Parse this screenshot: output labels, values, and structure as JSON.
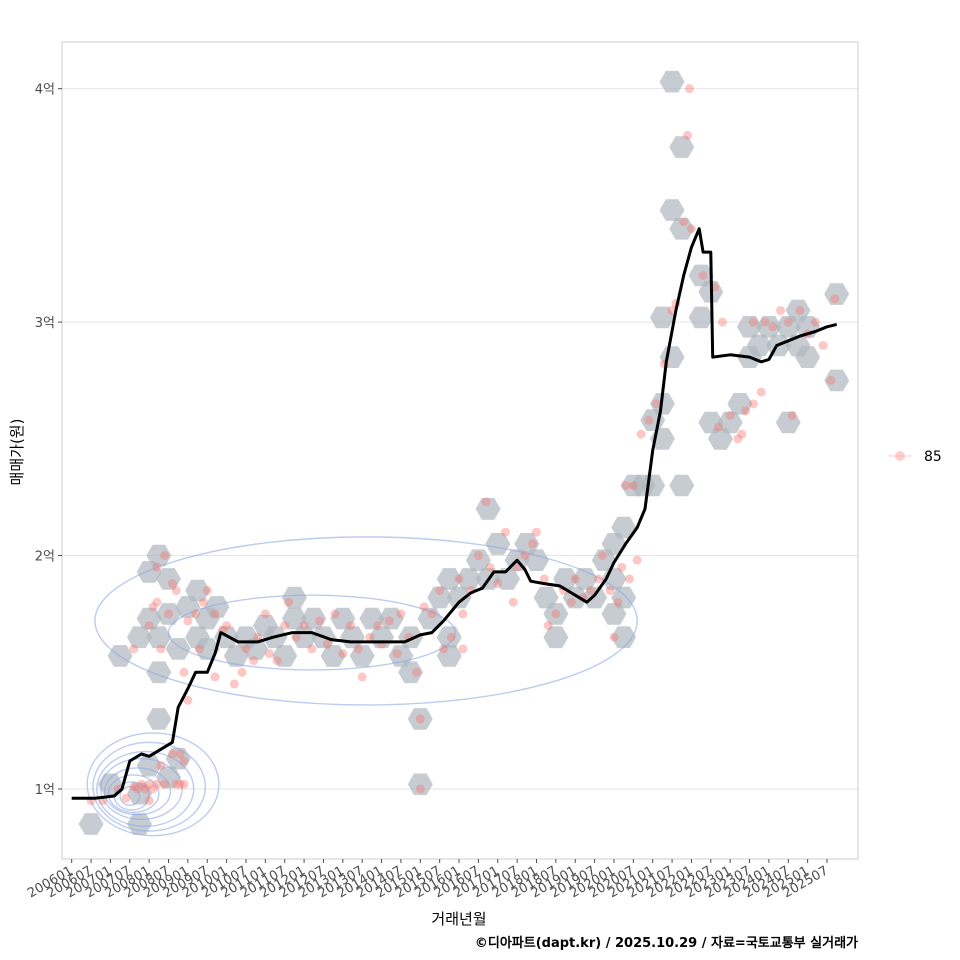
{
  "chart_data": {
    "type": "scatter",
    "xlabel": "거래년월",
    "ylabel": "매매가(원)",
    "caption": "©디아파트(dapt.kr) / 2025.10.29 / 자료=국토교통부 실거래가",
    "legend": {
      "label": "85",
      "position": "right"
    },
    "xlim": [
      2005.75,
      2026.3
    ],
    "ylim": [
      0.7,
      4.2
    ],
    "y_ticks": [
      {
        "value": 1,
        "label": "1억"
      },
      {
        "value": 2,
        "label": "2억"
      },
      {
        "value": 3,
        "label": "3억"
      },
      {
        "value": 4,
        "label": "4억"
      }
    ],
    "x_ticks": [
      {
        "value": 2006.0,
        "label": "200601"
      },
      {
        "value": 2006.5,
        "label": "200607"
      },
      {
        "value": 2007.0,
        "label": "200701"
      },
      {
        "value": 2007.5,
        "label": "200707"
      },
      {
        "value": 2008.0,
        "label": "200801"
      },
      {
        "value": 2008.5,
        "label": "200807"
      },
      {
        "value": 2009.0,
        "label": "200901"
      },
      {
        "value": 2009.5,
        "label": "200907"
      },
      {
        "value": 2010.0,
        "label": "201001"
      },
      {
        "value": 2010.5,
        "label": "201007"
      },
      {
        "value": 2011.0,
        "label": "201101"
      },
      {
        "value": 2011.5,
        "label": "201107"
      },
      {
        "value": 2012.0,
        "label": "201201"
      },
      {
        "value": 2012.5,
        "label": "201207"
      },
      {
        "value": 2013.0,
        "label": "201301"
      },
      {
        "value": 2013.5,
        "label": "201307"
      },
      {
        "value": 2014.0,
        "label": "201401"
      },
      {
        "value": 2014.5,
        "label": "201407"
      },
      {
        "value": 2015.0,
        "label": "201501"
      },
      {
        "value": 2015.5,
        "label": "201507"
      },
      {
        "value": 2016.0,
        "label": "201601"
      },
      {
        "value": 2016.5,
        "label": "201607"
      },
      {
        "value": 2017.0,
        "label": "201701"
      },
      {
        "value": 2017.5,
        "label": "201707"
      },
      {
        "value": 2018.0,
        "label": "201801"
      },
      {
        "value": 2018.5,
        "label": "201807"
      },
      {
        "value": 2019.0,
        "label": "201901"
      },
      {
        "value": 2019.5,
        "label": "201907"
      },
      {
        "value": 2020.0,
        "label": "202001"
      },
      {
        "value": 2020.5,
        "label": "202007"
      },
      {
        "value": 2021.0,
        "label": "202101"
      },
      {
        "value": 2021.5,
        "label": "202107"
      },
      {
        "value": 2022.0,
        "label": "202201"
      },
      {
        "value": 2022.5,
        "label": "202207"
      },
      {
        "value": 2023.0,
        "label": "202301"
      },
      {
        "value": 2023.5,
        "label": "202307"
      },
      {
        "value": 2024.0,
        "label": "202401"
      },
      {
        "value": 2024.5,
        "label": "202407"
      },
      {
        "value": 2025.0,
        "label": "202501"
      },
      {
        "value": 2025.5,
        "label": "202507"
      }
    ],
    "trend_line": [
      [
        2006.0,
        0.96
      ],
      [
        2006.6,
        0.96
      ],
      [
        2007.1,
        0.97
      ],
      [
        2007.3,
        1.0
      ],
      [
        2007.5,
        1.12
      ],
      [
        2007.8,
        1.15
      ],
      [
        2008.0,
        1.14
      ],
      [
        2008.3,
        1.17
      ],
      [
        2008.6,
        1.2
      ],
      [
        2008.75,
        1.35
      ],
      [
        2009.0,
        1.43
      ],
      [
        2009.2,
        1.5
      ],
      [
        2009.5,
        1.5
      ],
      [
        2009.7,
        1.58
      ],
      [
        2009.85,
        1.67
      ],
      [
        2010.3,
        1.63
      ],
      [
        2010.8,
        1.63
      ],
      [
        2011.2,
        1.65
      ],
      [
        2011.7,
        1.67
      ],
      [
        2012.2,
        1.67
      ],
      [
        2012.7,
        1.64
      ],
      [
        2013.2,
        1.63
      ],
      [
        2013.7,
        1.63
      ],
      [
        2014.2,
        1.63
      ],
      [
        2014.6,
        1.63
      ],
      [
        2015.0,
        1.66
      ],
      [
        2015.3,
        1.67
      ],
      [
        2015.6,
        1.72
      ],
      [
        2016.0,
        1.8
      ],
      [
        2016.3,
        1.84
      ],
      [
        2016.6,
        1.86
      ],
      [
        2016.9,
        1.93
      ],
      [
        2017.2,
        1.93
      ],
      [
        2017.5,
        1.98
      ],
      [
        2017.7,
        1.94
      ],
      [
        2017.85,
        1.89
      ],
      [
        2018.2,
        1.88
      ],
      [
        2018.6,
        1.87
      ],
      [
        2019.0,
        1.83
      ],
      [
        2019.3,
        1.8
      ],
      [
        2019.5,
        1.83
      ],
      [
        2019.8,
        1.9
      ],
      [
        2020.0,
        1.97
      ],
      [
        2020.3,
        2.05
      ],
      [
        2020.6,
        2.12
      ],
      [
        2020.8,
        2.2
      ],
      [
        2021.0,
        2.45
      ],
      [
        2021.2,
        2.62
      ],
      [
        2021.35,
        2.83
      ],
      [
        2021.6,
        3.05
      ],
      [
        2021.8,
        3.2
      ],
      [
        2022.0,
        3.32
      ],
      [
        2022.2,
        3.4
      ],
      [
        2022.3,
        3.3
      ],
      [
        2022.5,
        3.3
      ],
      [
        2022.55,
        2.85
      ],
      [
        2023.0,
        2.86
      ],
      [
        2023.5,
        2.85
      ],
      [
        2023.8,
        2.83
      ],
      [
        2024.0,
        2.84
      ],
      [
        2024.2,
        2.9
      ],
      [
        2024.5,
        2.92
      ],
      [
        2024.8,
        2.94
      ],
      [
        2025.2,
        2.96
      ],
      [
        2025.5,
        2.98
      ],
      [
        2025.75,
        2.99
      ]
    ],
    "scatter_points": [
      [
        2006.5,
        0.95
      ],
      [
        2006.8,
        0.95
      ],
      [
        2007.2,
        1.0
      ],
      [
        2007.4,
        0.96
      ],
      [
        2007.6,
        1.01
      ],
      [
        2007.7,
        1.0
      ],
      [
        2007.8,
        1.02
      ],
      [
        2008.0,
        1.02
      ],
      [
        2008.0,
        0.95
      ],
      [
        2008.2,
        1.02
      ],
      [
        2008.4,
        1.02
      ],
      [
        2008.7,
        1.02
      ],
      [
        2008.8,
        1.02
      ],
      [
        2008.9,
        1.02
      ],
      [
        2007.9,
        1.0
      ],
      [
        2008.1,
        1.0
      ],
      [
        2008.3,
        1.1
      ],
      [
        2008.6,
        1.15
      ],
      [
        2008.8,
        1.15
      ],
      [
        2008.9,
        1.12
      ],
      [
        2007.6,
        1.6
      ],
      [
        2008.0,
        1.7
      ],
      [
        2008.1,
        1.78
      ],
      [
        2008.2,
        1.95
      ],
      [
        2008.4,
        2.0
      ],
      [
        2008.2,
        1.8
      ],
      [
        2008.5,
        1.75
      ],
      [
        2008.3,
        1.6
      ],
      [
        2008.6,
        1.88
      ],
      [
        2008.7,
        1.85
      ],
      [
        2009.0,
        1.72
      ],
      [
        2009.2,
        1.75
      ],
      [
        2009.3,
        1.6
      ],
      [
        2009.4,
        1.8
      ],
      [
        2009.5,
        1.85
      ],
      [
        2009.7,
        1.75
      ],
      [
        2009.9,
        1.68
      ],
      [
        2010.0,
        1.7
      ],
      [
        2010.2,
        1.45
      ],
      [
        2010.4,
        1.5
      ],
      [
        2010.5,
        1.6
      ],
      [
        2010.7,
        1.55
      ],
      [
        2010.8,
        1.65
      ],
      [
        2011.0,
        1.75
      ],
      [
        2011.1,
        1.58
      ],
      [
        2011.3,
        1.55
      ],
      [
        2011.5,
        1.7
      ],
      [
        2011.6,
        1.8
      ],
      [
        2011.8,
        1.65
      ],
      [
        2012.0,
        1.7
      ],
      [
        2012.2,
        1.6
      ],
      [
        2012.4,
        1.72
      ],
      [
        2012.6,
        1.62
      ],
      [
        2012.8,
        1.75
      ],
      [
        2013.0,
        1.58
      ],
      [
        2013.2,
        1.7
      ],
      [
        2013.4,
        1.6
      ],
      [
        2013.5,
        1.48
      ],
      [
        2013.7,
        1.65
      ],
      [
        2013.9,
        1.7
      ],
      [
        2014.0,
        1.62
      ],
      [
        2014.2,
        1.72
      ],
      [
        2014.4,
        1.58
      ],
      [
        2014.5,
        1.75
      ],
      [
        2014.7,
        1.65
      ],
      [
        2014.9,
        1.5
      ],
      [
        2015.0,
        1.3
      ],
      [
        2015.1,
        1.78
      ],
      [
        2015.3,
        1.75
      ],
      [
        2015.5,
        1.85
      ],
      [
        2015.6,
        1.6
      ],
      [
        2015.8,
        1.65
      ],
      [
        2016.0,
        1.9
      ],
      [
        2016.1,
        1.75
      ],
      [
        2016.3,
        1.85
      ],
      [
        2016.5,
        2.0
      ],
      [
        2016.7,
        2.23
      ],
      [
        2016.8,
        1.95
      ],
      [
        2017.0,
        1.88
      ],
      [
        2017.2,
        2.1
      ],
      [
        2017.4,
        1.8
      ],
      [
        2017.5,
        1.95
      ],
      [
        2017.7,
        2.0
      ],
      [
        2017.9,
        2.05
      ],
      [
        2018.0,
        2.1
      ],
      [
        2018.2,
        1.9
      ],
      [
        2018.3,
        1.7
      ],
      [
        2018.5,
        1.75
      ],
      [
        2018.7,
        1.85
      ],
      [
        2018.9,
        1.8
      ],
      [
        2019.0,
        1.9
      ],
      [
        2019.2,
        1.82
      ],
      [
        2019.4,
        1.85
      ],
      [
        2019.6,
        1.9
      ],
      [
        2019.7,
        2.0
      ],
      [
        2019.9,
        1.85
      ],
      [
        2020.0,
        1.65
      ],
      [
        2020.1,
        1.8
      ],
      [
        2020.2,
        1.95
      ],
      [
        2020.3,
        2.3
      ],
      [
        2020.5,
        2.3
      ],
      [
        2020.4,
        1.9
      ],
      [
        2020.6,
        1.98
      ],
      [
        2020.7,
        2.52
      ],
      [
        2020.9,
        2.58
      ],
      [
        2021.1,
        2.65
      ],
      [
        2021.3,
        2.82
      ],
      [
        2021.5,
        3.05
      ],
      [
        2021.6,
        3.08
      ],
      [
        2021.8,
        3.43
      ],
      [
        2021.9,
        3.8
      ],
      [
        2021.95,
        4.0
      ],
      [
        2022.0,
        3.4
      ],
      [
        2022.3,
        3.2
      ],
      [
        2022.6,
        3.15
      ],
      [
        2022.8,
        3.0
      ],
      [
        2022.7,
        2.55
      ],
      [
        2023.0,
        2.6
      ],
      [
        2023.2,
        2.5
      ],
      [
        2023.3,
        2.52
      ],
      [
        2023.4,
        2.62
      ],
      [
        2023.6,
        2.65
      ],
      [
        2023.8,
        2.7
      ],
      [
        2023.6,
        3.0
      ],
      [
        2023.9,
        3.0
      ],
      [
        2024.1,
        2.98
      ],
      [
        2024.3,
        3.05
      ],
      [
        2024.5,
        3.0
      ],
      [
        2024.6,
        2.6
      ],
      [
        2024.8,
        3.05
      ],
      [
        2025.0,
        2.95
      ],
      [
        2025.2,
        3.0
      ],
      [
        2025.4,
        2.9
      ],
      [
        2025.6,
        2.75
      ],
      [
        2025.7,
        3.1
      ],
      [
        2015.0,
        1.0
      ],
      [
        2016.1,
        1.6
      ],
      [
        2009.0,
        1.38
      ],
      [
        2008.9,
        1.5
      ],
      [
        2009.7,
        1.48
      ]
    ],
    "hex_bins": [
      [
        2006.5,
        0.85
      ],
      [
        2007.0,
        1.02
      ],
      [
        2007.75,
        0.85
      ],
      [
        2007.75,
        0.98
      ],
      [
        2008.0,
        1.1
      ],
      [
        2008.5,
        1.05
      ],
      [
        2008.25,
        1.3
      ],
      [
        2008.75,
        1.13
      ],
      [
        2007.25,
        1.57
      ],
      [
        2007.75,
        1.65
      ],
      [
        2008.25,
        1.65
      ],
      [
        2008.0,
        1.73
      ],
      [
        2008.0,
        1.93
      ],
      [
        2008.25,
        2.0
      ],
      [
        2008.5,
        1.9
      ],
      [
        2008.5,
        1.75
      ],
      [
        2008.75,
        1.6
      ],
      [
        2008.25,
        1.5
      ],
      [
        2009.0,
        1.78
      ],
      [
        2009.25,
        1.85
      ],
      [
        2009.5,
        1.73
      ],
      [
        2009.25,
        1.65
      ],
      [
        2009.5,
        1.6
      ],
      [
        2009.75,
        1.78
      ],
      [
        2010.0,
        1.65
      ],
      [
        2010.25,
        1.57
      ],
      [
        2010.5,
        1.65
      ],
      [
        2010.75,
        1.6
      ],
      [
        2011.0,
        1.7
      ],
      [
        2011.25,
        1.65
      ],
      [
        2011.5,
        1.57
      ],
      [
        2011.75,
        1.73
      ],
      [
        2011.75,
        1.82
      ],
      [
        2012.0,
        1.65
      ],
      [
        2012.25,
        1.73
      ],
      [
        2012.5,
        1.65
      ],
      [
        2012.75,
        1.57
      ],
      [
        2013.0,
        1.73
      ],
      [
        2013.25,
        1.65
      ],
      [
        2013.5,
        1.57
      ],
      [
        2013.75,
        1.73
      ],
      [
        2014.0,
        1.65
      ],
      [
        2014.25,
        1.73
      ],
      [
        2014.5,
        1.57
      ],
      [
        2014.75,
        1.65
      ],
      [
        2014.75,
        1.5
      ],
      [
        2015.0,
        1.3
      ],
      [
        2015.25,
        1.73
      ],
      [
        2015.5,
        1.82
      ],
      [
        2015.75,
        1.65
      ],
      [
        2015.75,
        1.57
      ],
      [
        2015.75,
        1.9
      ],
      [
        2016.0,
        1.82
      ],
      [
        2016.25,
        1.9
      ],
      [
        2016.5,
        1.98
      ],
      [
        2016.75,
        1.9
      ],
      [
        2016.75,
        2.2
      ],
      [
        2017.0,
        2.05
      ],
      [
        2017.25,
        1.9
      ],
      [
        2017.5,
        1.98
      ],
      [
        2017.75,
        2.05
      ],
      [
        2018.0,
        1.98
      ],
      [
        2018.25,
        1.82
      ],
      [
        2018.5,
        1.75
      ],
      [
        2018.5,
        1.65
      ],
      [
        2018.75,
        1.9
      ],
      [
        2019.0,
        1.82
      ],
      [
        2019.25,
        1.9
      ],
      [
        2019.5,
        1.82
      ],
      [
        2019.75,
        1.98
      ],
      [
        2020.0,
        1.9
      ],
      [
        2020.0,
        1.75
      ],
      [
        2020.25,
        1.82
      ],
      [
        2020.25,
        1.65
      ],
      [
        2020.0,
        2.05
      ],
      [
        2020.25,
        2.12
      ],
      [
        2020.5,
        2.3
      ],
      [
        2020.75,
        2.3
      ],
      [
        2021.0,
        2.58
      ],
      [
        2021.25,
        2.65
      ],
      [
        2021.25,
        2.5
      ],
      [
        2021.5,
        2.85
      ],
      [
        2021.25,
        3.02
      ],
      [
        2021.5,
        3.48
      ],
      [
        2021.75,
        3.4
      ],
      [
        2021.75,
        3.75
      ],
      [
        2021.5,
        4.03
      ],
      [
        2022.25,
        3.2
      ],
      [
        2022.5,
        3.13
      ],
      [
        2022.25,
        3.02
      ],
      [
        2022.5,
        2.57
      ],
      [
        2022.75,
        2.5
      ],
      [
        2023.0,
        2.57
      ],
      [
        2023.25,
        2.65
      ],
      [
        2023.5,
        2.98
      ],
      [
        2023.75,
        2.9
      ],
      [
        2024.0,
        2.98
      ],
      [
        2024.25,
        2.9
      ],
      [
        2024.5,
        2.57
      ],
      [
        2024.5,
        2.98
      ],
      [
        2024.75,
        3.05
      ],
      [
        2024.75,
        2.9
      ],
      [
        2025.0,
        2.98
      ],
      [
        2025.75,
        3.12
      ],
      [
        2025.75,
        2.75
      ],
      [
        2025.0,
        2.85
      ],
      [
        2023.5,
        2.85
      ],
      [
        2021.75,
        2.3
      ],
      [
        2021.0,
        2.3
      ],
      [
        2015.0,
        1.02
      ]
    ],
    "density_contours": [
      {
        "center": [
          2007.5,
          0.97
        ],
        "rx": 0.25,
        "ry": 0.04
      },
      {
        "center": [
          2007.55,
          0.97
        ],
        "rx": 0.45,
        "ry": 0.06
      },
      {
        "center": [
          2007.6,
          0.98
        ],
        "rx": 0.65,
        "ry": 0.08
      },
      {
        "center": [
          2007.7,
          0.99
        ],
        "rx": 0.85,
        "ry": 0.1
      },
      {
        "center": [
          2007.8,
          1.0
        ],
        "rx": 1.05,
        "ry": 0.13
      },
      {
        "center": [
          2007.9,
          1.0
        ],
        "rx": 1.25,
        "ry": 0.16
      },
      {
        "center": [
          2008.0,
          1.01
        ],
        "rx": 1.45,
        "ry": 0.19
      },
      {
        "center": [
          2008.1,
          1.02
        ],
        "rx": 1.7,
        "ry": 0.22
      },
      {
        "center": [
          2012.2,
          1.67
        ],
        "rx": 3.7,
        "ry": 0.16
      },
      {
        "center": [
          2013.6,
          1.72
        ],
        "rx": 7.0,
        "ry": 0.36
      }
    ]
  }
}
